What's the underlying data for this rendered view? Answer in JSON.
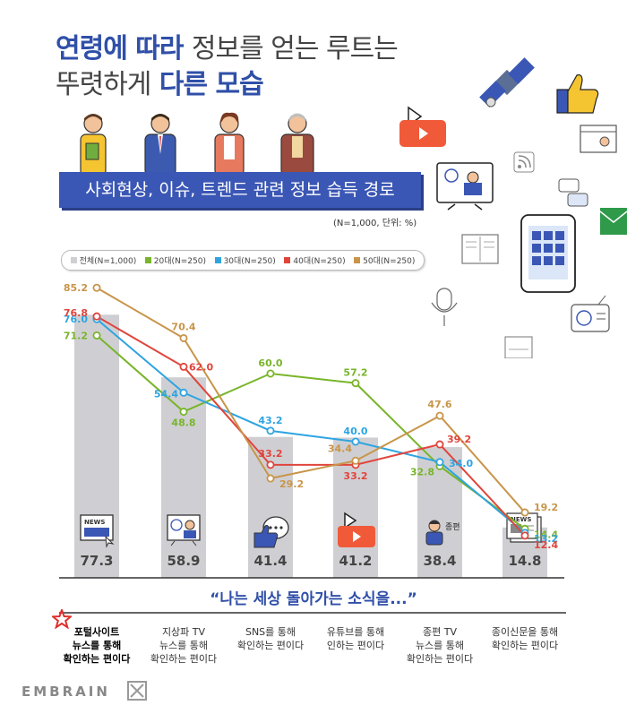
{
  "title": {
    "line1_accent": "연령에 따라",
    "line1_rest": "정보를 얻는 루트는",
    "line2_rest": "뚜렷하게",
    "line2_accent": "다른 모습"
  },
  "subtitle": "사회현상, 이슈, 트렌드 관련 정보 습득 경로",
  "unit_note": "(N=1,000, 단위: %)",
  "tagline": "“나는 세상 돌아가는 소식을...”",
  "brand": "EMBRAIN",
  "colors": {
    "total": "#cfcfd3",
    "age20": "#79b52a",
    "age30": "#2fa4e0",
    "age40": "#e0453c",
    "age50": "#c8954a",
    "accent": "#2f4fa8"
  },
  "chart_data": {
    "type": "bar",
    "categories": [
      "포털사이트 뉴스를 통해 확인하는 편이다",
      "지상파 TV 뉴스를 통해 확인하는 편이다",
      "SNS를 통해 확인하는 편이다",
      "유튜브를 통해 인하는 편이다",
      "종편 TV 뉴스를 통해 확인하는 편이다",
      "종이신문을 통해 확인하는 편이다"
    ],
    "category_lines": [
      [
        "포털사이트",
        "뉴스를 통해",
        "확인하는 편이다"
      ],
      [
        "지상파 TV",
        "뉴스를 통해",
        "확인하는 편이다"
      ],
      [
        "SNS를 통해",
        "확인하는 편이다"
      ],
      [
        "유튜브를 통해",
        "인하는 편이다"
      ],
      [
        "종편 TV",
        "뉴스를 통해",
        "확인하는 편이다"
      ],
      [
        "종이신문을 통해",
        "확인하는 편이다"
      ]
    ],
    "bar_series": {
      "name": "전체(N=1,000)",
      "values": [
        77.3,
        58.9,
        41.4,
        41.2,
        38.4,
        14.8
      ]
    },
    "series": [
      {
        "name": "20대(N=250)",
        "values": [
          71.2,
          48.8,
          60.0,
          57.2,
          32.8,
          14.4
        ]
      },
      {
        "name": "30대(N=250)",
        "values": [
          76.0,
          54.4,
          43.2,
          40.0,
          34.0,
          13.2
        ]
      },
      {
        "name": "40대(N=250)",
        "values": [
          76.8,
          62.0,
          33.2,
          33.2,
          39.2,
          12.4
        ]
      },
      {
        "name": "50대(N=250)",
        "values": [
          85.2,
          70.4,
          29.2,
          34.4,
          47.6,
          19.2
        ]
      }
    ],
    "ylim": [
      0,
      100
    ]
  }
}
